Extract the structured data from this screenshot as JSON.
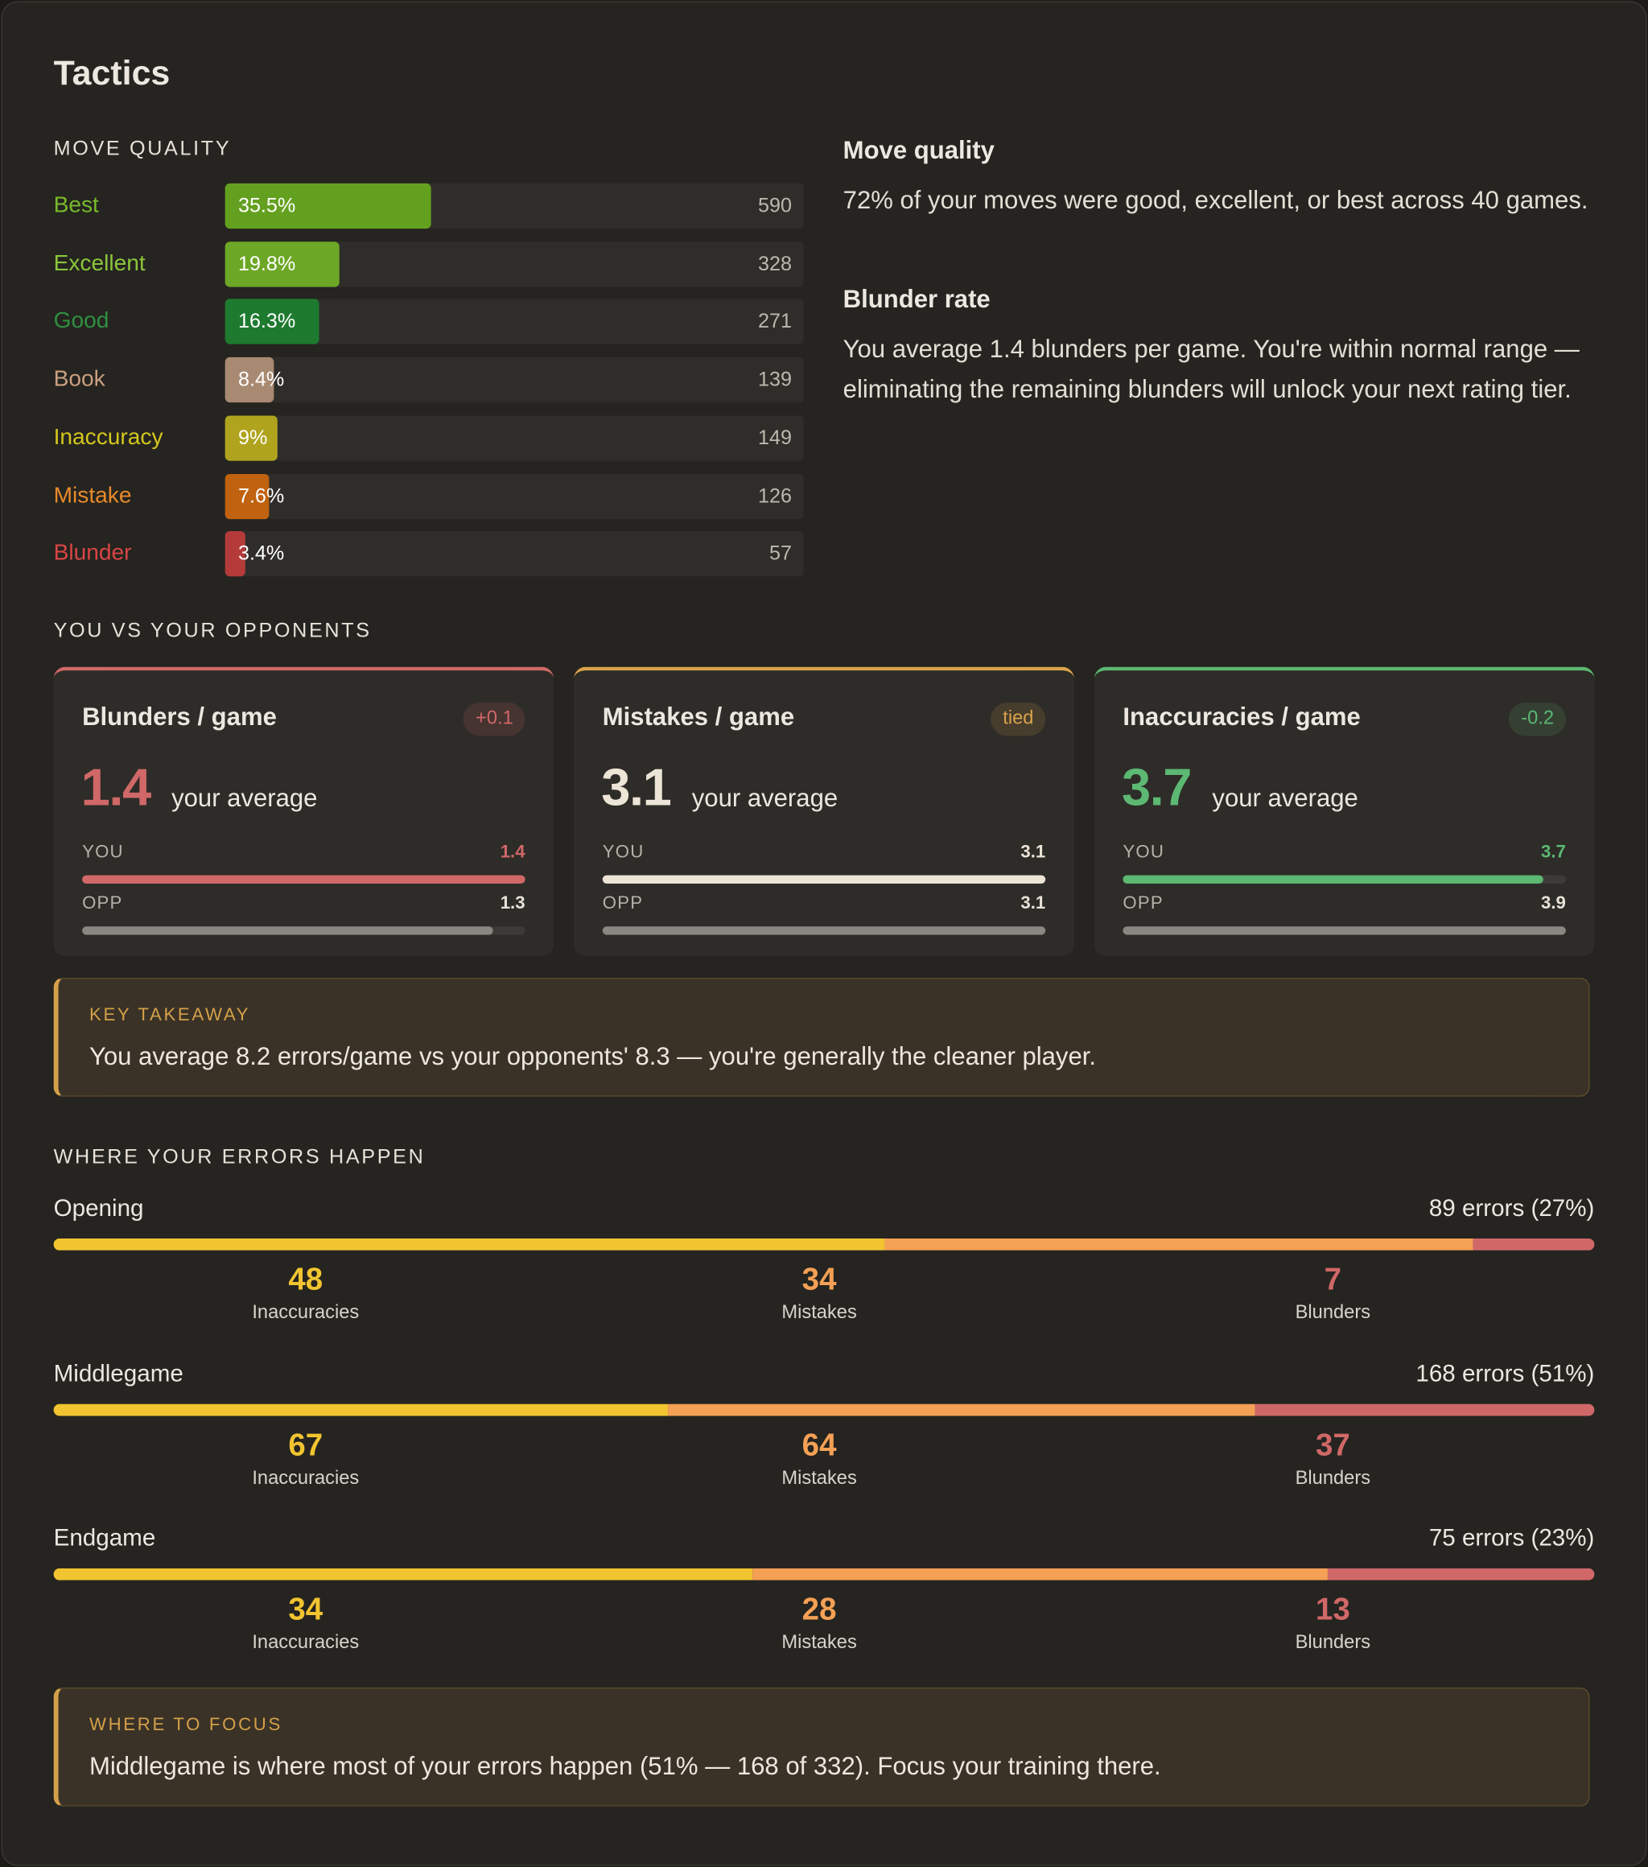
{
  "header": {
    "title": "Tactics"
  },
  "move_quality": {
    "heading": "MOVE QUALITY",
    "rows": [
      {
        "label": "Best",
        "pct": 35.5,
        "pct_label": "35.5%",
        "count": 590,
        "color": "#64a01f",
        "label_color": "#78bb2b"
      },
      {
        "label": "Excellent",
        "pct": 19.8,
        "pct_label": "19.8%",
        "count": 328,
        "color": "#6da726",
        "label_color": "#8cc63c"
      },
      {
        "label": "Good",
        "pct": 16.3,
        "pct_label": "16.3%",
        "count": 271,
        "color": "#1e7a2f",
        "label_color": "#2f9040"
      },
      {
        "label": "Book",
        "pct": 8.4,
        "pct_label": "8.4%",
        "count": 139,
        "color": "#a88a72",
        "label_color": "#c9a07f"
      },
      {
        "label": "Inaccuracy",
        "pct": 9,
        "pct_label": "9%",
        "count": 149,
        "color": "#b0a41e",
        "label_color": "#d4c61e"
      },
      {
        "label": "Mistake",
        "pct": 7.6,
        "pct_label": "7.6%",
        "count": 126,
        "color": "#c0620f",
        "label_color": "#e88a2a"
      },
      {
        "label": "Blunder",
        "pct": 3.4,
        "pct_label": "3.4%",
        "count": 57,
        "color": "#b53a3a",
        "label_color": "#d94545"
      }
    ]
  },
  "summary": {
    "sections": [
      {
        "title": "Move quality",
        "text": "72% of your moves were good, excellent, or best across 40 games."
      },
      {
        "title": "Blunder rate",
        "text": "You average 1.4 blunders per game. You're within normal range — eliminating the remaining blunders will unlock your next rating tier."
      }
    ]
  },
  "comparison": {
    "heading": "YOU VS YOUR OPPONENTS",
    "cards": [
      {
        "title": "Blunders / game",
        "badge": "+0.1",
        "value": 1.4,
        "caption": "your average",
        "you_label": "YOU",
        "you": 1.4,
        "opp_label": "OPP",
        "opp": 1.3,
        "accent": "#d06868",
        "color": "#d06868"
      },
      {
        "title": "Mistakes / game",
        "badge": "tied",
        "value": 3.1,
        "caption": "your average",
        "you_label": "YOU",
        "you": 3.1,
        "opp_label": "OPP",
        "opp": 3.1,
        "accent": "#d9a24a",
        "color": "#ece4d6"
      },
      {
        "title": "Inaccuracies / game",
        "badge": "-0.2",
        "value": 3.7,
        "caption": "your average",
        "you_label": "YOU",
        "you": 3.7,
        "opp_label": "OPP",
        "opp": 3.9,
        "accent": "#5cb872",
        "color": "#5cb872"
      }
    ]
  },
  "takeaway": {
    "label": "KEY TAKEAWAY",
    "text": "You average 8.2 errors/game vs your opponents' 8.3 — you're generally the cleaner player."
  },
  "phases": {
    "heading": "WHERE YOUR ERRORS HAPPEN",
    "segment_colors": [
      "#f2c430",
      "#f4a055",
      "#d06868"
    ],
    "rows": [
      {
        "name": "Opening",
        "summary": "89 errors (27%)",
        "segments": [
          {
            "value": 48,
            "label": "Inaccuracies"
          },
          {
            "value": 34,
            "label": "Mistakes"
          },
          {
            "value": 7,
            "label": "Blunders"
          }
        ]
      },
      {
        "name": "Middlegame",
        "summary": "168 errors (51%)",
        "segments": [
          {
            "value": 67,
            "label": "Inaccuracies"
          },
          {
            "value": 64,
            "label": "Mistakes"
          },
          {
            "value": 37,
            "label": "Blunders"
          }
        ]
      },
      {
        "name": "Endgame",
        "summary": "75 errors (23%)",
        "segments": [
          {
            "value": 34,
            "label": "Inaccuracies"
          },
          {
            "value": 28,
            "label": "Mistakes"
          },
          {
            "value": 13,
            "label": "Blunders"
          }
        ]
      }
    ]
  },
  "focus": {
    "label": "WHERE TO FOCUS",
    "text": "Middlegame is where most of your errors happen (51% — 168 of 332). Focus your training there."
  }
}
